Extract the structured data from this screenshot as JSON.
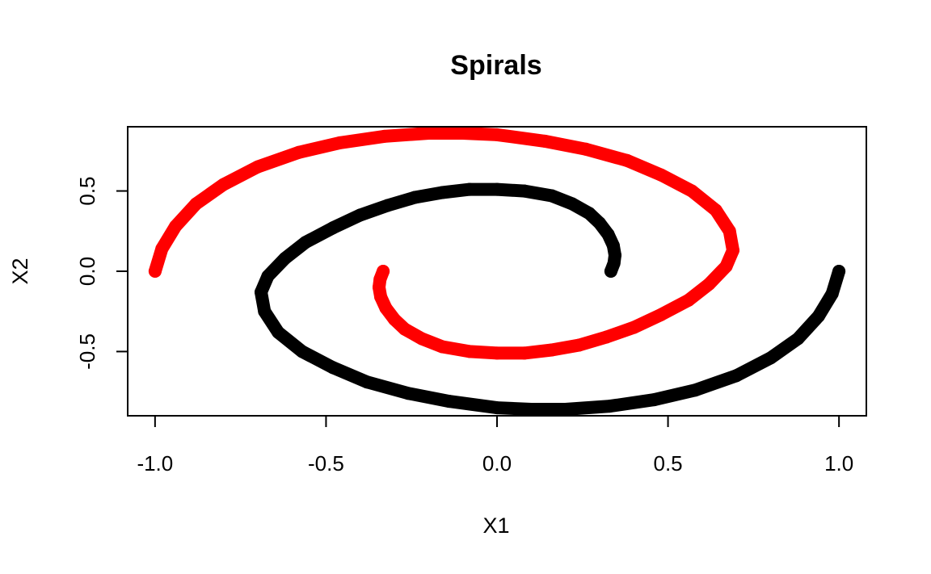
{
  "chart_data": {
    "type": "scatter",
    "title": "Spirals",
    "xlabel": "X1",
    "ylabel": "X2",
    "xlim": [
      -1.08,
      1.08
    ],
    "ylim": [
      -0.9,
      0.9
    ],
    "xticks": [
      -1.0,
      -0.5,
      0.0,
      0.5,
      1.0
    ],
    "xtick_labels": [
      "-1.0",
      "-0.5",
      "0.0",
      "0.5",
      "1.0"
    ],
    "yticks": [
      -0.5,
      0.0,
      0.5
    ],
    "ytick_labels": [
      "-0.5",
      "0.0",
      "0.5"
    ],
    "grid": false,
    "legend": "none",
    "series": [
      {
        "color": "#000000",
        "x": [
          0.333,
          0.342,
          0.345,
          0.34,
          0.325,
          0.3,
          0.27,
          0.22,
          0.16,
          0.08,
          0.0,
          -0.08,
          -0.16,
          -0.24,
          -0.32,
          -0.4,
          -0.48,
          -0.56,
          -0.62,
          -0.67,
          -0.69,
          -0.68,
          -0.64,
          -0.57,
          -0.48,
          -0.38,
          -0.26,
          -0.14,
          0.0,
          0.1,
          0.2,
          0.33,
          0.46,
          0.58,
          0.7,
          0.8,
          0.88,
          0.94,
          0.98,
          1.0
        ],
        "y": [
          0.0,
          0.05,
          0.1,
          0.16,
          0.23,
          0.3,
          0.36,
          0.42,
          0.47,
          0.5,
          0.51,
          0.51,
          0.49,
          0.46,
          0.41,
          0.35,
          0.27,
          0.18,
          0.08,
          -0.03,
          -0.13,
          -0.25,
          -0.38,
          -0.5,
          -0.6,
          -0.69,
          -0.76,
          -0.81,
          -0.85,
          -0.86,
          -0.86,
          -0.84,
          -0.8,
          -0.74,
          -0.65,
          -0.54,
          -0.42,
          -0.28,
          -0.14,
          0.0
        ]
      },
      {
        "color": "#ff0000",
        "x": [
          -0.333,
          -0.342,
          -0.345,
          -0.34,
          -0.325,
          -0.3,
          -0.27,
          -0.22,
          -0.16,
          -0.08,
          0.0,
          0.08,
          0.16,
          0.24,
          0.32,
          0.4,
          0.48,
          0.56,
          0.62,
          0.67,
          0.69,
          0.68,
          0.64,
          0.57,
          0.48,
          0.38,
          0.26,
          0.14,
          0.0,
          -0.1,
          -0.2,
          -0.33,
          -0.46,
          -0.58,
          -0.7,
          -0.8,
          -0.88,
          -0.94,
          -0.98,
          -1.0
        ],
        "y": [
          0.0,
          -0.05,
          -0.1,
          -0.16,
          -0.23,
          -0.3,
          -0.36,
          -0.42,
          -0.47,
          -0.5,
          -0.51,
          -0.51,
          -0.49,
          -0.46,
          -0.41,
          -0.35,
          -0.27,
          -0.18,
          -0.08,
          0.03,
          0.13,
          0.25,
          0.38,
          0.5,
          0.6,
          0.69,
          0.76,
          0.81,
          0.85,
          0.86,
          0.86,
          0.84,
          0.8,
          0.74,
          0.65,
          0.54,
          0.42,
          0.28,
          0.14,
          0.0
        ]
      }
    ]
  }
}
